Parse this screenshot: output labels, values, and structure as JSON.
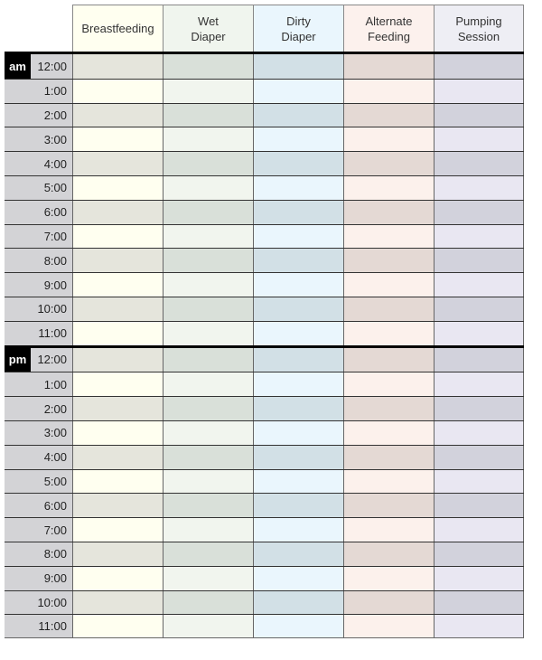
{
  "columns": [
    {
      "label": "Breastfeeding",
      "header_color": "#fffff0",
      "light": "#fffff0",
      "dark": "#e5e5dc"
    },
    {
      "label": "Wet\nDiaper",
      "header_color": "#f0f5ee",
      "light": "#f1f5ee",
      "dark": "#d9e0d9"
    },
    {
      "label": "Dirty\nDiaper",
      "header_color": "#eaf6fd",
      "light": "#eaf6fd",
      "dark": "#d2e0e6"
    },
    {
      "label": "Alternate\nFeeding",
      "header_color": "#fcf1ed",
      "light": "#fcf1ec",
      "dark": "#e4d9d4"
    },
    {
      "label": "Pumping\nSession",
      "header_color": "#eeeef4",
      "light": "#e9e7f2",
      "dark": "#d2d2dc"
    }
  ],
  "sections": [
    {
      "label": "am",
      "times": [
        "12:00",
        "1:00",
        "2:00",
        "3:00",
        "4:00",
        "5:00",
        "6:00",
        "7:00",
        "8:00",
        "9:00",
        "10:00",
        "11:00"
      ]
    },
    {
      "label": "pm",
      "times": [
        "12:00",
        "1:00",
        "2:00",
        "3:00",
        "4:00",
        "5:00",
        "6:00",
        "7:00",
        "8:00",
        "9:00",
        "10:00",
        "11:00"
      ]
    }
  ]
}
